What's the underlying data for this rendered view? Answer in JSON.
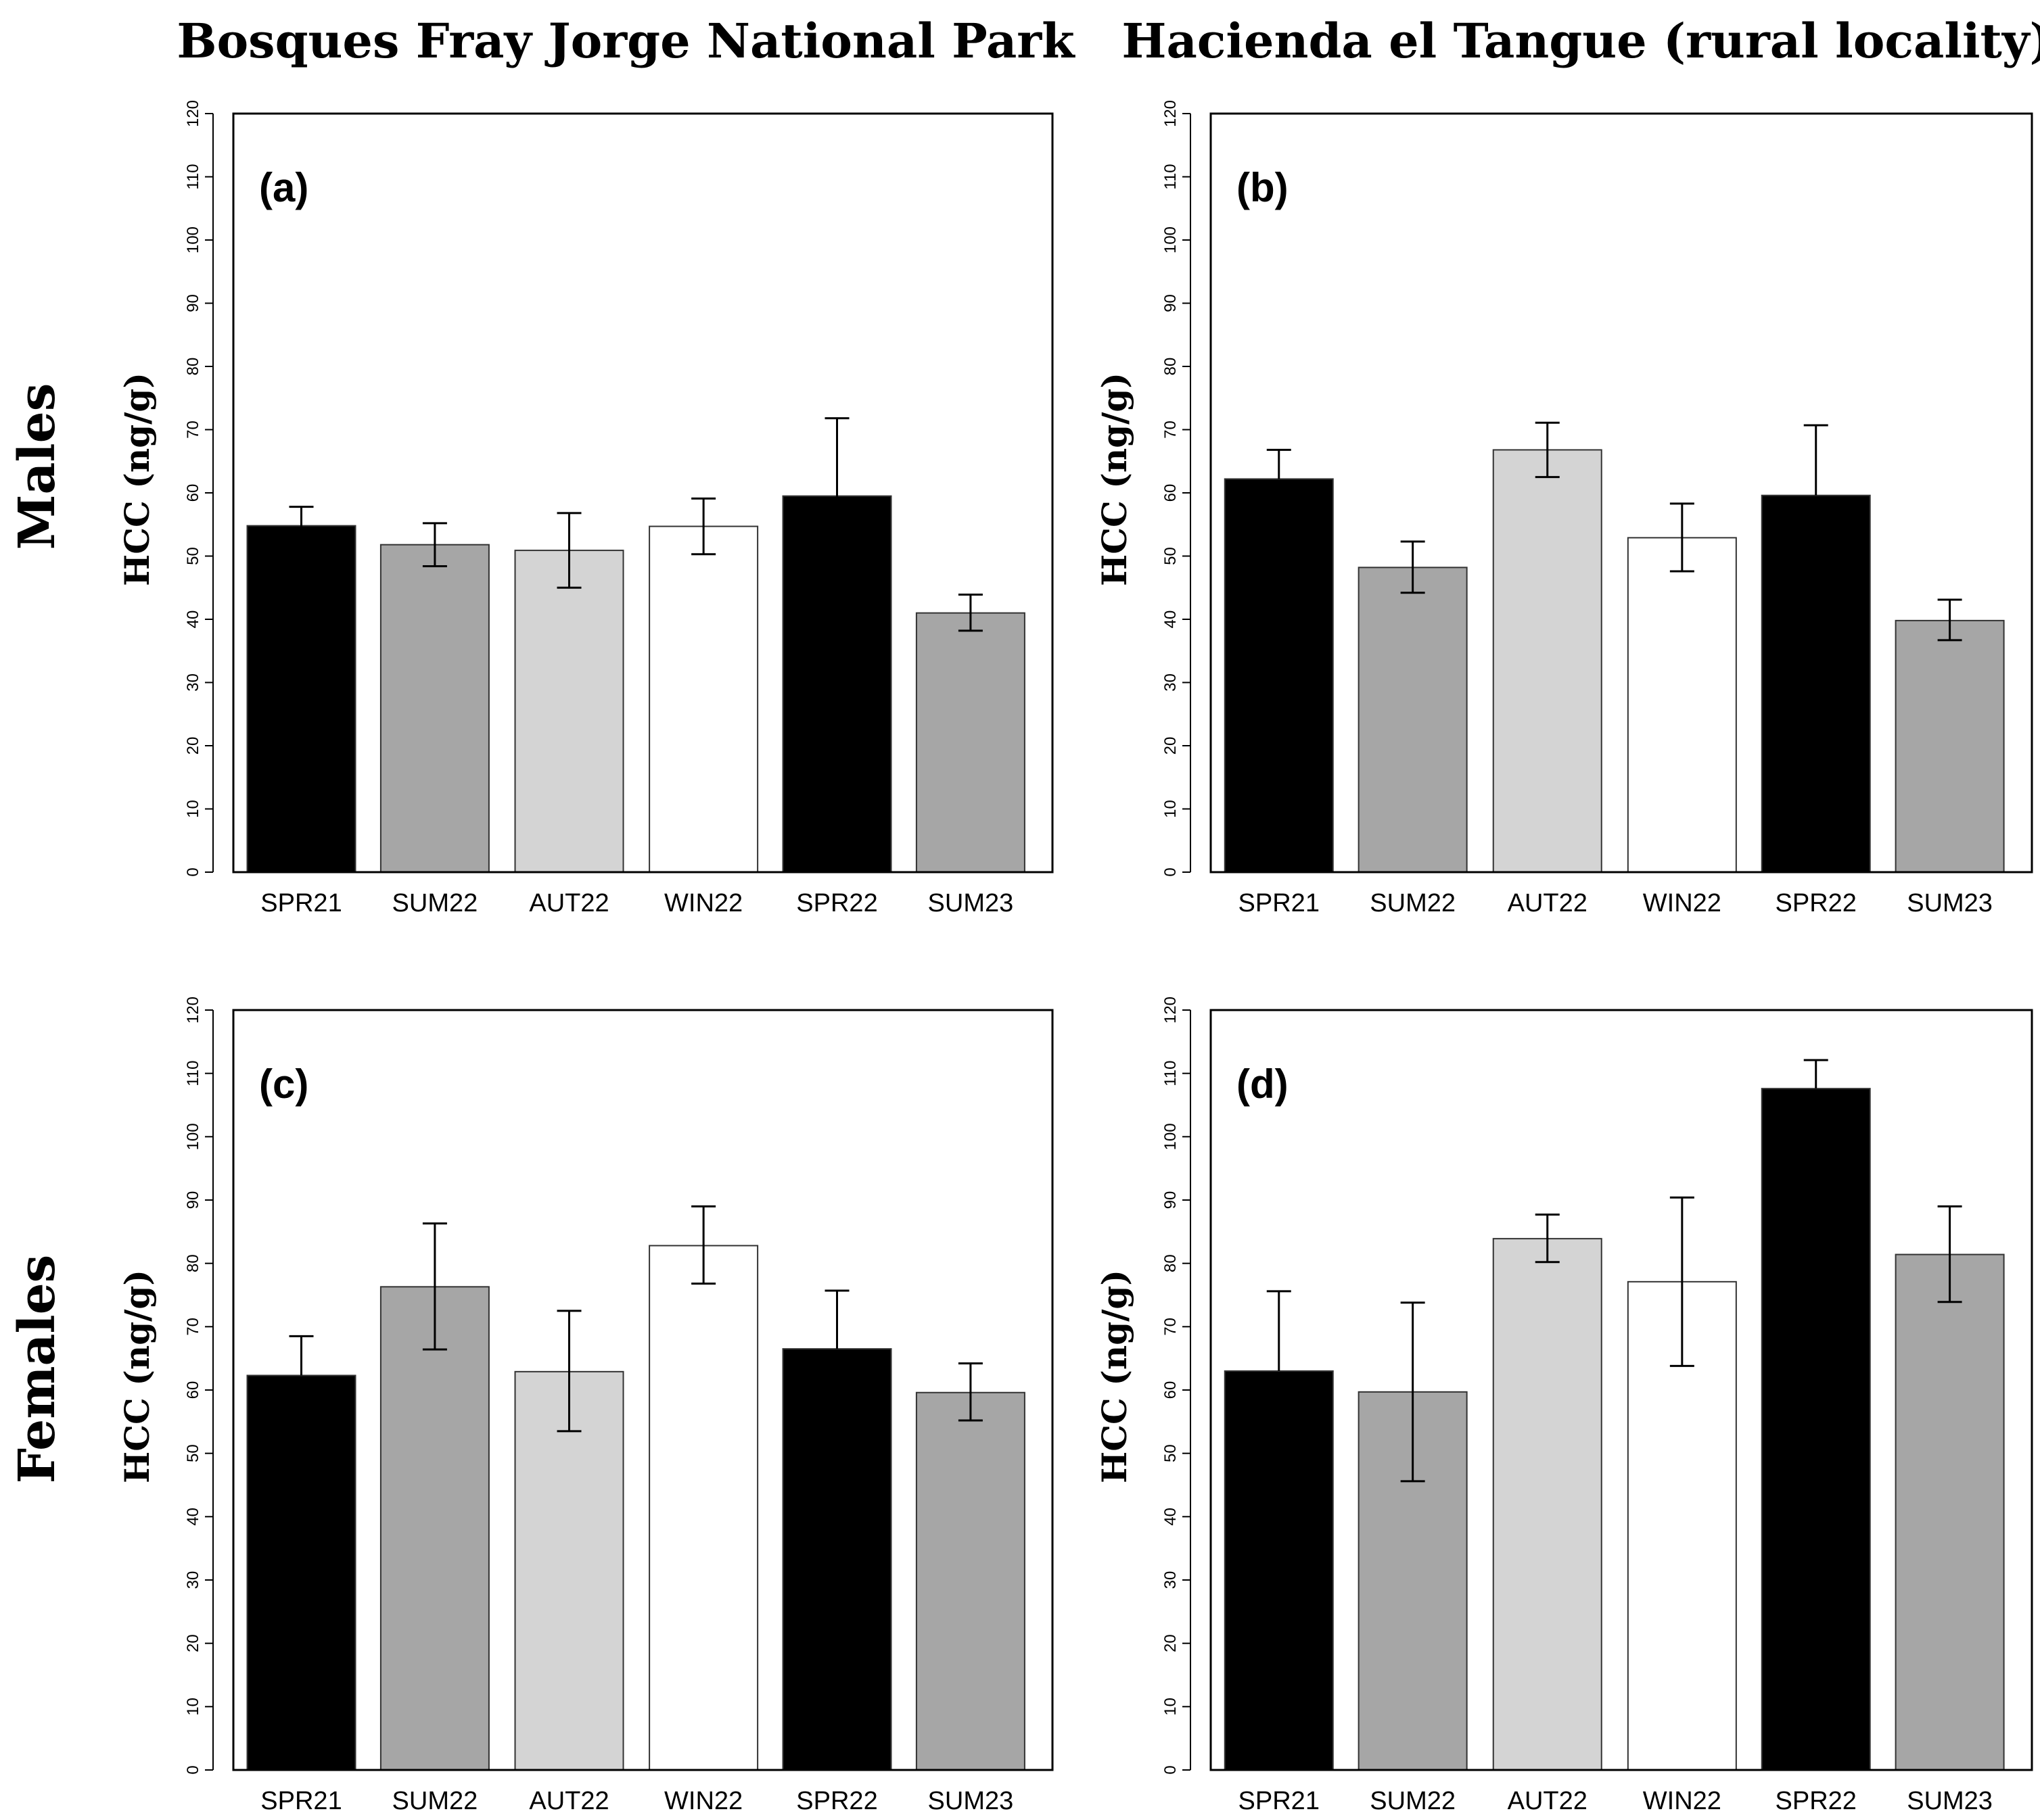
{
  "column_titles": [
    "Bosques Fray Jorge National Park",
    "Hacienda el Tangue (rural locality)"
  ],
  "row_titles": [
    "Males",
    "Females"
  ],
  "colors": {
    "SPR": "#000000",
    "SUM": "#a6a6a6",
    "AUT": "#d4d4d4",
    "WIN": "#ffffff"
  },
  "chart_data": [
    {
      "type": "bar",
      "panel": "(a)",
      "site": "Bosques Fray Jorge National Park",
      "sex": "Males",
      "categories": [
        "SPR21",
        "SUM22",
        "AUT22",
        "WIN22",
        "SPR22",
        "SUM23"
      ],
      "values": [
        54.8,
        51.8,
        50.9,
        54.7,
        59.5,
        41.0
      ],
      "error_low": [
        51.8,
        48.4,
        45.0,
        50.3,
        47.2,
        38.2
      ],
      "error_high": [
        57.8,
        55.2,
        56.8,
        59.1,
        71.8,
        43.9
      ],
      "ylabel": "HCC (ng/g)",
      "ylim": [
        0,
        120
      ],
      "yticks": [
        "0",
        "10",
        "20",
        "30",
        "40",
        "50",
        "60",
        "70",
        "80",
        "90",
        "100",
        "110",
        "120"
      ]
    },
    {
      "type": "bar",
      "panel": "(b)",
      "site": "Hacienda el Tangue (rural locality)",
      "sex": "Males",
      "categories": [
        "SPR21",
        "SUM22",
        "AUT22",
        "WIN22",
        "SPR22",
        "SUM23"
      ],
      "values": [
        62.2,
        48.2,
        66.8,
        52.9,
        59.6,
        39.8
      ],
      "error_low": [
        62.2,
        44.2,
        62.5,
        47.6,
        59.6,
        36.7
      ],
      "error_high": [
        66.8,
        52.3,
        71.1,
        58.3,
        70.7,
        43.1
      ],
      "ylabel": "HCC (ng/g)",
      "ylim": [
        0,
        120
      ],
      "yticks": [
        "0",
        "10",
        "20",
        "30",
        "40",
        "50",
        "60",
        "70",
        "80",
        "90",
        "100",
        "110",
        "120"
      ]
    },
    {
      "type": "bar",
      "panel": "(c)",
      "site": "Bosques Fray Jorge National Park",
      "sex": "Females",
      "categories": [
        "SPR21",
        "SUM22",
        "AUT22",
        "WIN22",
        "SPR22",
        "SUM23"
      ],
      "values": [
        62.3,
        76.3,
        62.9,
        82.8,
        66.5,
        59.6
      ],
      "error_low": [
        62.3,
        66.4,
        53.5,
        76.8,
        66.5,
        55.2
      ],
      "error_high": [
        68.5,
        86.3,
        72.5,
        89.0,
        75.7,
        64.2
      ],
      "ylabel": "HCC (ng/g)",
      "ylim": [
        0,
        120
      ],
      "yticks": [
        "0",
        "10",
        "20",
        "30",
        "40",
        "50",
        "60",
        "70",
        "80",
        "90",
        "100",
        "110",
        "120"
      ]
    },
    {
      "type": "bar",
      "panel": "(d)",
      "site": "Hacienda el Tangue (rural locality)",
      "sex": "Females",
      "categories": [
        "SPR21",
        "SUM22",
        "AUT22",
        "WIN22",
        "SPR22",
        "SUM23"
      ],
      "values": [
        63.0,
        59.7,
        83.9,
        77.1,
        107.6,
        81.4
      ],
      "error_low": [
        63.0,
        45.6,
        80.2,
        63.8,
        107.6,
        73.9
      ],
      "error_high": [
        75.6,
        73.8,
        87.7,
        90.4,
        112.1,
        89.0
      ],
      "ylabel": "HCC (ng/g)",
      "ylim": [
        0,
        120
      ],
      "yticks": [
        "0",
        "10",
        "20",
        "30",
        "40",
        "50",
        "60",
        "70",
        "80",
        "90",
        "100",
        "110",
        "120"
      ]
    }
  ]
}
